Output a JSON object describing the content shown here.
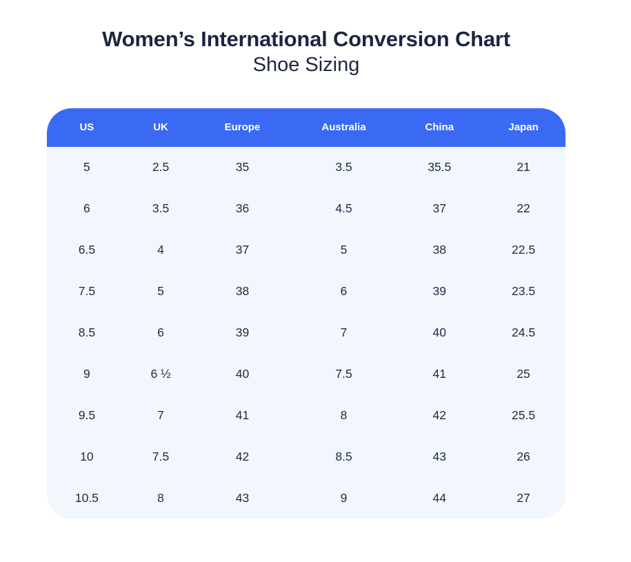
{
  "chart_data": {
    "type": "table",
    "title": "Women’s International Conversion Chart",
    "subtitle": "Shoe Sizing",
    "columns": [
      "US",
      "UK",
      "Europe",
      "Australia",
      "China",
      "Japan"
    ],
    "rows": [
      [
        "5",
        "2.5",
        "35",
        "3.5",
        "35.5",
        "21"
      ],
      [
        "6",
        "3.5",
        "36",
        "4.5",
        "37",
        "22"
      ],
      [
        "6.5",
        "4",
        "37",
        "5",
        "38",
        "22.5"
      ],
      [
        "7.5",
        "5",
        "38",
        "6",
        "39",
        "23.5"
      ],
      [
        "8.5",
        "6",
        "39",
        "7",
        "40",
        "24.5"
      ],
      [
        "9",
        "6 ½",
        "40",
        "7.5",
        "41",
        "25"
      ],
      [
        "9.5",
        "7",
        "41",
        "8",
        "42",
        "25.5"
      ],
      [
        "10",
        "7.5",
        "42",
        "8.5",
        "43",
        "26"
      ],
      [
        "10.5",
        "8",
        "43",
        "9",
        "44",
        "27"
      ]
    ],
    "layout": {
      "header_position": "top",
      "grid": "off",
      "column_width_percents": [
        15.4,
        13.1,
        18.4,
        20.7,
        16.2,
        16.2
      ]
    }
  },
  "colors": {
    "header_bg": "#3a6af4",
    "header_text": "#ffffff",
    "panel_bg": "#f2f6fd",
    "title_text": "#1c2642",
    "cell_text": "#202c47"
  }
}
